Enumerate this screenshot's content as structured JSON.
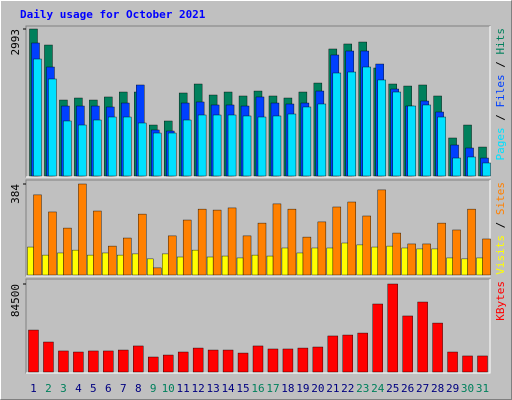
{
  "chart_data": [
    {
      "type": "bar",
      "title": "Daily usage for October 2021",
      "ylim": [
        0,
        2993
      ],
      "yticks": [
        2993
      ],
      "legend_separator": " / ",
      "series": [
        {
          "name": "Hits",
          "color": "#00805c",
          "values": [
            2993,
            2667,
            1547,
            1588,
            1547,
            1609,
            1710,
            1710,
            1038,
            1120,
            1690,
            1873,
            1649,
            1710,
            1629,
            1730,
            1629,
            1588,
            1710,
            1893,
            2586,
            2688,
            2728,
            2199,
            1873,
            1832,
            1853,
            1629,
            774,
            1038,
            590
          ]
        },
        {
          "name": "Files",
          "color": "#0040ff",
          "values": [
            2708,
            2219,
            1425,
            1425,
            1425,
            1405,
            1486,
            1853,
            937,
            916,
            1486,
            1507,
            1446,
            1446,
            1425,
            1609,
            1486,
            1466,
            1486,
            1730,
            2464,
            2545,
            2545,
            2280,
            1771,
            1425,
            1527,
            1303,
            631,
            570,
            366
          ]
        },
        {
          "name": "Pages",
          "color": "#00e0ff",
          "values": [
            2382,
            1975,
            1120,
            1038,
            1140,
            1201,
            1201,
            1079,
            875,
            875,
            1140,
            1242,
            1242,
            1242,
            1222,
            1201,
            1222,
            1262,
            1405,
            1466,
            2097,
            2117,
            2219,
            1955,
            1710,
            1425,
            1446,
            1201,
            366,
            387,
            265
          ]
        }
      ]
    },
    {
      "type": "bar",
      "ylim": [
        0,
        384
      ],
      "yticks": [
        384
      ],
      "legend_separator": " / ",
      "series": [
        {
          "name": "Sites",
          "color": "#ff8000",
          "values": [
            338,
            266,
            198,
            384,
            270,
            122,
            156,
            257,
            30,
            165,
            232,
            278,
            274,
            283,
            165,
            219,
            300,
            278,
            160,
            224,
            287,
            308,
            249,
            359,
            177,
            131,
            131,
            219,
            190,
            278,
            152
          ]
        },
        {
          "name": "Visits",
          "color": "#ffff00",
          "values": [
            118,
            84,
            93,
            105,
            84,
            93,
            84,
            89,
            68,
            89,
            76,
            105,
            76,
            80,
            72,
            84,
            80,
            114,
            93,
            114,
            114,
            135,
            127,
            118,
            122,
            114,
            110,
            110,
            72,
            68,
            72
          ]
        }
      ]
    },
    {
      "type": "bar",
      "ylim": [
        0,
        84500
      ],
      "yticks": [
        84500
      ],
      "categories": [
        "1",
        "2",
        "3",
        "4",
        "5",
        "6",
        "7",
        "8",
        "9",
        "10",
        "11",
        "12",
        "13",
        "14",
        "15",
        "16",
        "17",
        "18",
        "19",
        "20",
        "21",
        "22",
        "23",
        "24",
        "25",
        "26",
        "27",
        "28",
        "29",
        "30",
        "31"
      ],
      "category_colors": [
        "#000080",
        "#00805c",
        "#00805c",
        "#000080",
        "#000080",
        "#000080",
        "#000080",
        "#000080",
        "#00805c",
        "#00805c",
        "#000080",
        "#000080",
        "#000080",
        "#000080",
        "#000080",
        "#00805c",
        "#00805c",
        "#000080",
        "#000080",
        "#000080",
        "#000080",
        "#000080",
        "#00805c",
        "#00805c",
        "#000080",
        "#000080",
        "#000080",
        "#000080",
        "#000080",
        "#00805c",
        "#00805c"
      ],
      "series": [
        {
          "name": "KBytes",
          "color": "#ff0000",
          "values": [
            40300,
            28800,
            20200,
            19200,
            20200,
            20200,
            21100,
            25000,
            14400,
            16300,
            19200,
            23000,
            21100,
            21100,
            18200,
            25000,
            22100,
            22100,
            23000,
            24000,
            34600,
            35500,
            37400,
            65300,
            84500,
            53800,
            67200,
            47000,
            19200,
            15400,
            15400
          ]
        }
      ]
    }
  ]
}
